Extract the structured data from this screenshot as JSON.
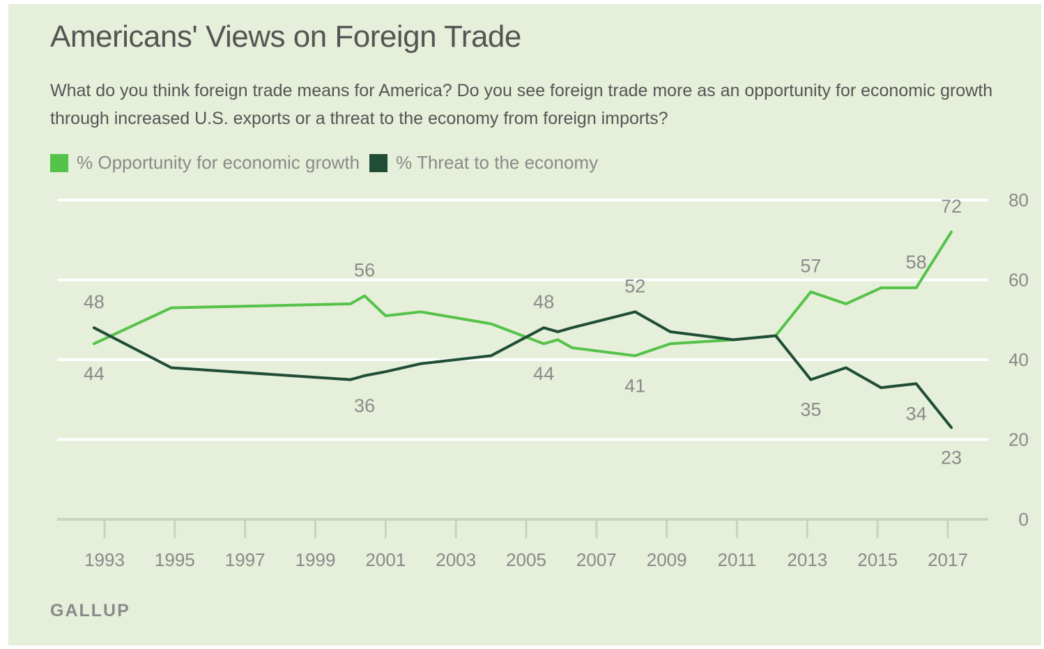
{
  "header": {
    "title": "Americans' Views on Foreign Trade",
    "subtitle": "What do you think foreign trade means for America? Do you see foreign trade more as an opportunity for economic growth through increased U.S. exports or a threat to the economy from foreign imports?"
  },
  "source": "GALLUP",
  "colors": {
    "background": "#e6efd9",
    "opportunity": "#55c24a",
    "threat": "#1f4d35",
    "axis": "#c9d3bf",
    "grid": "#ffffff",
    "label": "#8a8a8a"
  },
  "chart_data": {
    "type": "line",
    "xlim": [
      1992.3,
      2017.6
    ],
    "ylim": [
      0,
      80
    ],
    "y_ticks": [
      0,
      20,
      40,
      60,
      80
    ],
    "x_ticks": [
      1993,
      1995,
      1997,
      1999,
      2001,
      2003,
      2005,
      2007,
      2009,
      2011,
      2013,
      2015,
      2017
    ],
    "grid": true,
    "legend_position": "top-left",
    "series": [
      {
        "name": "% Opportunity for economic growth",
        "color": "#55c24a",
        "x": [
          1992.7,
          1994.9,
          2000.0,
          2000.4,
          2001.0,
          2002.0,
          2004.0,
          2005.5,
          2005.9,
          2006.3,
          2008.1,
          2009.1,
          2010.9,
          2012.1,
          2013.1,
          2014.1,
          2015.1,
          2016.1,
          2017.1
        ],
        "y": [
          44,
          53,
          54,
          56,
          51,
          52,
          49,
          44,
          45,
          43,
          41,
          44,
          45,
          46,
          57,
          54,
          58,
          58,
          72
        ]
      },
      {
        "name": "% Threat to the economy",
        "color": "#1f4d35",
        "x": [
          1992.7,
          1994.9,
          2000.0,
          2000.4,
          2001.0,
          2002.0,
          2004.0,
          2005.5,
          2005.9,
          2006.3,
          2008.1,
          2009.1,
          2010.9,
          2012.1,
          2013.1,
          2014.1,
          2015.1,
          2016.1,
          2017.1
        ],
        "y": [
          48,
          38,
          35,
          36,
          37,
          39,
          41,
          48,
          47,
          48,
          52,
          47,
          45,
          46,
          35,
          38,
          33,
          34,
          23
        ]
      }
    ],
    "data_labels": [
      {
        "series": 0,
        "x": 1992.7,
        "text": "44",
        "pos": "below"
      },
      {
        "series": 1,
        "x": 1992.7,
        "text": "48",
        "pos": "above"
      },
      {
        "series": 0,
        "x": 2000.4,
        "text": "56",
        "pos": "above"
      },
      {
        "series": 1,
        "x": 2000.4,
        "text": "36",
        "pos": "below"
      },
      {
        "series": 0,
        "x": 2005.5,
        "text": "44",
        "pos": "below"
      },
      {
        "series": 1,
        "x": 2005.5,
        "text": "48",
        "pos": "above"
      },
      {
        "series": 1,
        "x": 2008.1,
        "text": "52",
        "pos": "above"
      },
      {
        "series": 0,
        "x": 2008.1,
        "text": "41",
        "pos": "below"
      },
      {
        "series": 0,
        "x": 2013.1,
        "text": "57",
        "pos": "above"
      },
      {
        "series": 1,
        "x": 2013.1,
        "text": "35",
        "pos": "below"
      },
      {
        "series": 0,
        "x": 2016.1,
        "text": "58",
        "pos": "above"
      },
      {
        "series": 1,
        "x": 2016.1,
        "text": "34",
        "pos": "below"
      },
      {
        "series": 0,
        "x": 2017.1,
        "text": "72",
        "pos": "above"
      },
      {
        "series": 1,
        "x": 2017.1,
        "text": "23",
        "pos": "below"
      }
    ]
  }
}
